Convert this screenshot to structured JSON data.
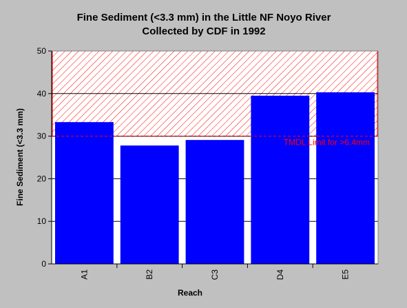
{
  "chart_data": {
    "type": "bar",
    "title": "Fine Sediment (<3.3 mm) in the Little NF Noyo River",
    "subtitle": "Collected by CDF in 1992",
    "xlabel": "Reach",
    "ylabel": "Fine Sediment (<3.3 mm)",
    "categories": [
      "A1",
      "B2",
      "C3",
      "D4",
      "E5"
    ],
    "values": [
      33.3,
      27.8,
      29.1,
      39.5,
      40.3
    ],
    "ylim": [
      0,
      50
    ],
    "yticks": [
      0,
      10,
      20,
      30,
      40,
      50
    ],
    "grid": true,
    "bar_color": "#0000ff",
    "threshold": {
      "value": 30,
      "label": "TMDL Limit for >6.4mm",
      "color": "#ff0000",
      "hatch_range": [
        30,
        50
      ]
    }
  }
}
